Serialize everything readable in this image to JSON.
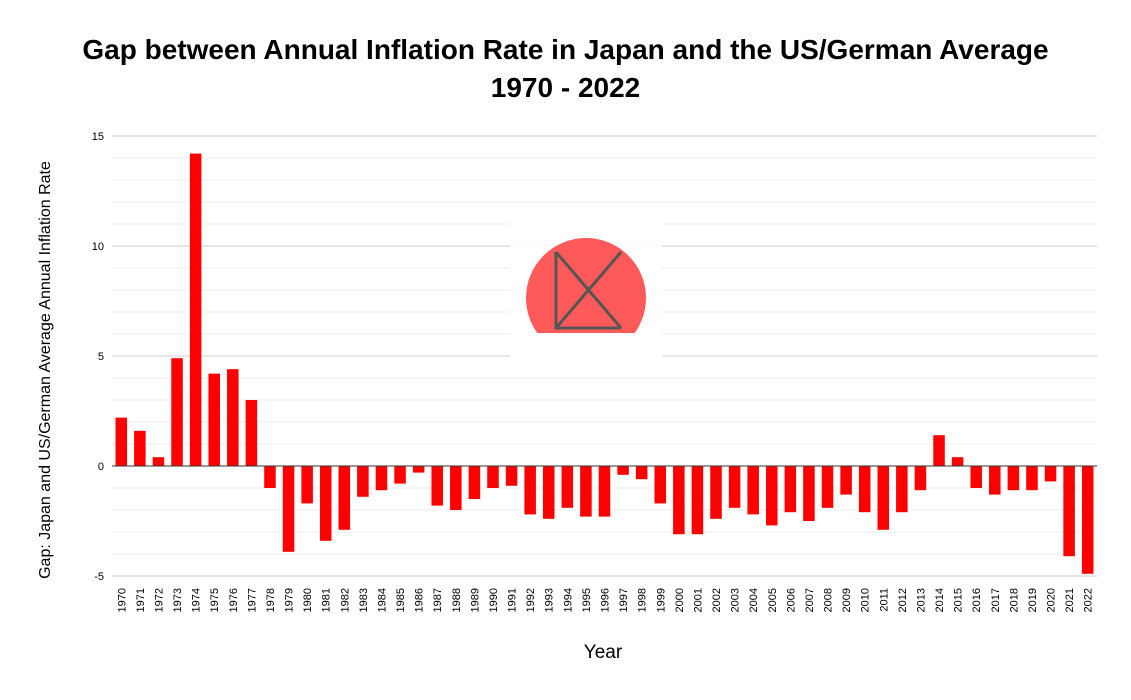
{
  "chart_data": {
    "type": "bar",
    "title": "Gap between Annual Inflation Rate in Japan and the US/German Average",
    "subtitle": "1970 - 2022",
    "xlabel": "Year",
    "ylabel": "Gap: Japan and US/German Average Annual Inflation Rate",
    "ylim": [
      -5,
      15
    ],
    "yticks": [
      15,
      10,
      5,
      0,
      -5
    ],
    "grid": true,
    "bar_color": "#ff0000",
    "categories": [
      "1970",
      "1971",
      "1972",
      "1973",
      "1974",
      "1975",
      "1976",
      "1977",
      "1978",
      "1979",
      "1980",
      "1981",
      "1982",
      "1983",
      "1984",
      "1985",
      "1986",
      "1987",
      "1988",
      "1989",
      "1990",
      "1991",
      "1992",
      "1993",
      "1994",
      "1995",
      "1996",
      "1997",
      "1998",
      "1999",
      "2000",
      "2001",
      "2002",
      "2003",
      "2004",
      "2005",
      "2006",
      "2007",
      "2008",
      "2009",
      "2010",
      "2011",
      "2012",
      "2013",
      "2014",
      "2015",
      "2016",
      "2017",
      "2018",
      "2019",
      "2020",
      "2021",
      "2022"
    ],
    "values": [
      2.2,
      1.6,
      0.4,
      4.9,
      14.2,
      4.2,
      4.4,
      3.0,
      -1.0,
      -3.9,
      -1.7,
      -3.4,
      -2.9,
      -1.4,
      -1.1,
      -0.8,
      -0.3,
      -1.8,
      -2.0,
      -1.5,
      -1.0,
      -0.9,
      -2.2,
      -2.4,
      -1.9,
      -2.3,
      -2.3,
      -0.4,
      -0.6,
      -1.7,
      -3.1,
      -3.1,
      -2.4,
      -1.9,
      -2.2,
      -2.7,
      -2.1,
      -2.5,
      -1.9,
      -1.3,
      -2.1,
      -2.9,
      -2.1,
      -1.1,
      1.4,
      0.4,
      -1.0,
      -1.3,
      -1.1,
      -1.1,
      -0.7,
      -4.1,
      -4.9
    ]
  },
  "watermark": {
    "icon": "chart-logo-icon",
    "circle_color": "#ff5a5a",
    "line_color": "#555555"
  }
}
